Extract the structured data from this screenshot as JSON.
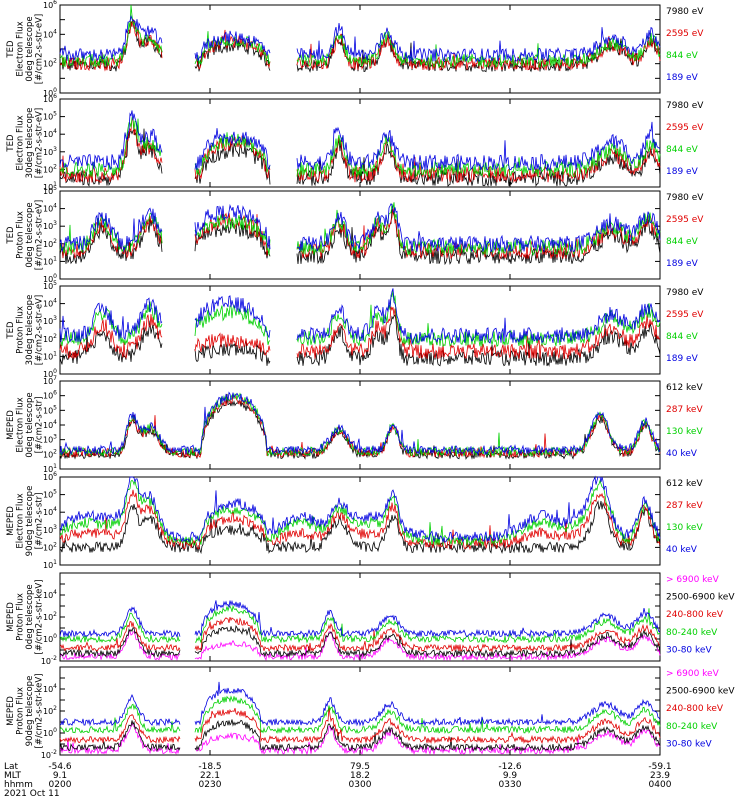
{
  "colors": {
    "black": "#000000",
    "red": "#e00000",
    "green": "#00d000",
    "blue": "#0000e0",
    "magenta": "#ff00ff"
  },
  "chart_data": [
    {
      "type": "line",
      "ylabel_lines": [
        "TED",
        "Electron Flux",
        "0deg telescope",
        "[#/cm2-s-str-eV]"
      ],
      "ylim": [
        1,
        1000000
      ],
      "y_log": true,
      "ytick_exponents": [
        0,
        2,
        4,
        6
      ],
      "series": [
        {
          "name": "7980 eV",
          "color": "#000000",
          "level": 1.9
        },
        {
          "name": "2595 eV",
          "color": "#e00000",
          "level": 2.0
        },
        {
          "name": "844 eV",
          "color": "#00d000",
          "level": 2.2
        },
        {
          "name": "189 eV",
          "color": "#0000e0",
          "level": 2.6
        }
      ]
    },
    {
      "type": "line",
      "ylabel_lines": [
        "TED",
        "Electron Flux",
        "30deg telescope",
        "[#/cm2-s-str-eV]"
      ],
      "ylim": [
        10,
        1000000
      ],
      "y_log": true,
      "ytick_exponents": [
        1,
        2,
        3,
        4,
        5,
        6
      ],
      "series": [
        {
          "name": "7980 eV",
          "color": "#000000",
          "level": 1.5
        },
        {
          "name": "2595 eV",
          "color": "#e00000",
          "level": 1.7
        },
        {
          "name": "844 eV",
          "color": "#00d000",
          "level": 2.0
        },
        {
          "name": "189 eV",
          "color": "#0000e0",
          "level": 2.4
        }
      ]
    },
    {
      "type": "line",
      "ylabel_lines": [
        "TED",
        "Proton Flux",
        "0deg telescope",
        "[#/cm2-s-str-eV]"
      ],
      "ylim": [
        1,
        100000
      ],
      "y_log": true,
      "ytick_exponents": [
        0,
        1,
        2,
        3,
        4,
        5
      ],
      "series": [
        {
          "name": "7980 eV",
          "color": "#000000",
          "level": 1.3
        },
        {
          "name": "2595 eV",
          "color": "#e00000",
          "level": 1.6
        },
        {
          "name": "844 eV",
          "color": "#00d000",
          "level": 1.8
        },
        {
          "name": "189 eV",
          "color": "#0000e0",
          "level": 2.0
        }
      ]
    },
    {
      "type": "line",
      "ylabel_lines": [
        "TED",
        "Proton Flux",
        "30deg telescope",
        "[#/cm2-s-str-eV]"
      ],
      "ylim": [
        1,
        100000
      ],
      "y_log": true,
      "ytick_exponents": [
        0,
        1,
        2,
        3,
        4,
        5
      ],
      "series": [
        {
          "name": "7980 eV",
          "color": "#000000",
          "level": 0.9
        },
        {
          "name": "2595 eV",
          "color": "#e00000",
          "level": 1.3
        },
        {
          "name": "844 eV",
          "color": "#00d000",
          "level": 2.0
        },
        {
          "name": "189 eV",
          "color": "#0000e0",
          "level": 2.2
        }
      ]
    },
    {
      "type": "line",
      "ylabel_lines": [
        "MEPED",
        "Electron Flux",
        "0deg telescope",
        "[#/cm2-s-str]"
      ],
      "ylim": [
        10,
        10000000
      ],
      "y_log": true,
      "ytick_exponents": [
        1,
        2,
        3,
        4,
        5,
        6,
        7
      ],
      "series": [
        {
          "name": "612 keV",
          "color": "#000000",
          "level": 2.0
        },
        {
          "name": "287 keV",
          "color": "#e00000",
          "level": 2.1
        },
        {
          "name": "130 keV",
          "color": "#00d000",
          "level": 2.2
        },
        {
          "name": "40 keV",
          "color": "#0000e0",
          "level": 2.3
        }
      ]
    },
    {
      "type": "line",
      "ylabel_lines": [
        "MEPED",
        "Electron Flux",
        "90deg telescope",
        "[#/cm2-s-str]"
      ],
      "ylim": [
        10,
        1000000
      ],
      "y_log": true,
      "ytick_exponents": [
        1,
        2,
        3,
        4,
        5,
        6
      ],
      "series": [
        {
          "name": "612 keV",
          "color": "#000000",
          "level": 2.0
        },
        {
          "name": "287 keV",
          "color": "#e00000",
          "level": 2.2
        },
        {
          "name": "130 keV",
          "color": "#00d000",
          "level": 2.4
        },
        {
          "name": "40 keV",
          "color": "#0000e0",
          "level": 2.6
        }
      ]
    },
    {
      "type": "line",
      "ylabel_lines": [
        "MEPED",
        "Proton Flux",
        "0deg telescope",
        "[#/cm2-s-str-keV]"
      ],
      "ylim": [
        0.01,
        1000000
      ],
      "y_log": true,
      "ytick_exponents": [
        -2,
        0,
        2,
        4
      ],
      "series": [
        {
          "name": "> 6900 keV",
          "color": "#ff00ff",
          "level": -1.6
        },
        {
          "name": "2500-6900 keV",
          "color": "#000000",
          "level": -1.3
        },
        {
          "name": "240-800 keV",
          "color": "#e00000",
          "level": -0.8
        },
        {
          "name": "80-240 keV",
          "color": "#00d000",
          "level": 0.0
        },
        {
          "name": "30-80 keV",
          "color": "#0000e0",
          "level": 0.5
        }
      ]
    },
    {
      "type": "line",
      "ylabel_lines": [
        "MEPED",
        "Proton Flux",
        "90deg telescope",
        "[#/cm2-s-str-keV]"
      ],
      "ylim": [
        0.01,
        1000000
      ],
      "y_log": true,
      "ytick_exponents": [
        -2,
        0,
        2,
        4
      ],
      "series": [
        {
          "name": "> 6900 keV",
          "color": "#ff00ff",
          "level": -1.6
        },
        {
          "name": "2500-6900 keV",
          "color": "#000000",
          "level": -1.3
        },
        {
          "name": "240-800 keV",
          "color": "#e00000",
          "level": -0.6
        },
        {
          "name": "80-240 keV",
          "color": "#00d000",
          "level": 0.3
        },
        {
          "name": "30-80 keV",
          "color": "#0000e0",
          "level": 1.0
        }
      ]
    }
  ],
  "xaxis": {
    "row_labels": [
      "Lat",
      "MLT",
      "hhmm"
    ],
    "date": "2021 Oct 11",
    "ticks": [
      {
        "lat": "-54.6",
        "mlt": "9.1",
        "hhmm": "0200"
      },
      {
        "lat": "-18.5",
        "mlt": "22.1",
        "hhmm": "0230"
      },
      {
        "lat": "79.5",
        "mlt": "18.2",
        "hhmm": "0300"
      },
      {
        "lat": "-12.6",
        "mlt": "9.9",
        "hhmm": "0330"
      },
      {
        "lat": "-59.1",
        "mlt": "23.9",
        "hhmm": "0400"
      }
    ]
  }
}
